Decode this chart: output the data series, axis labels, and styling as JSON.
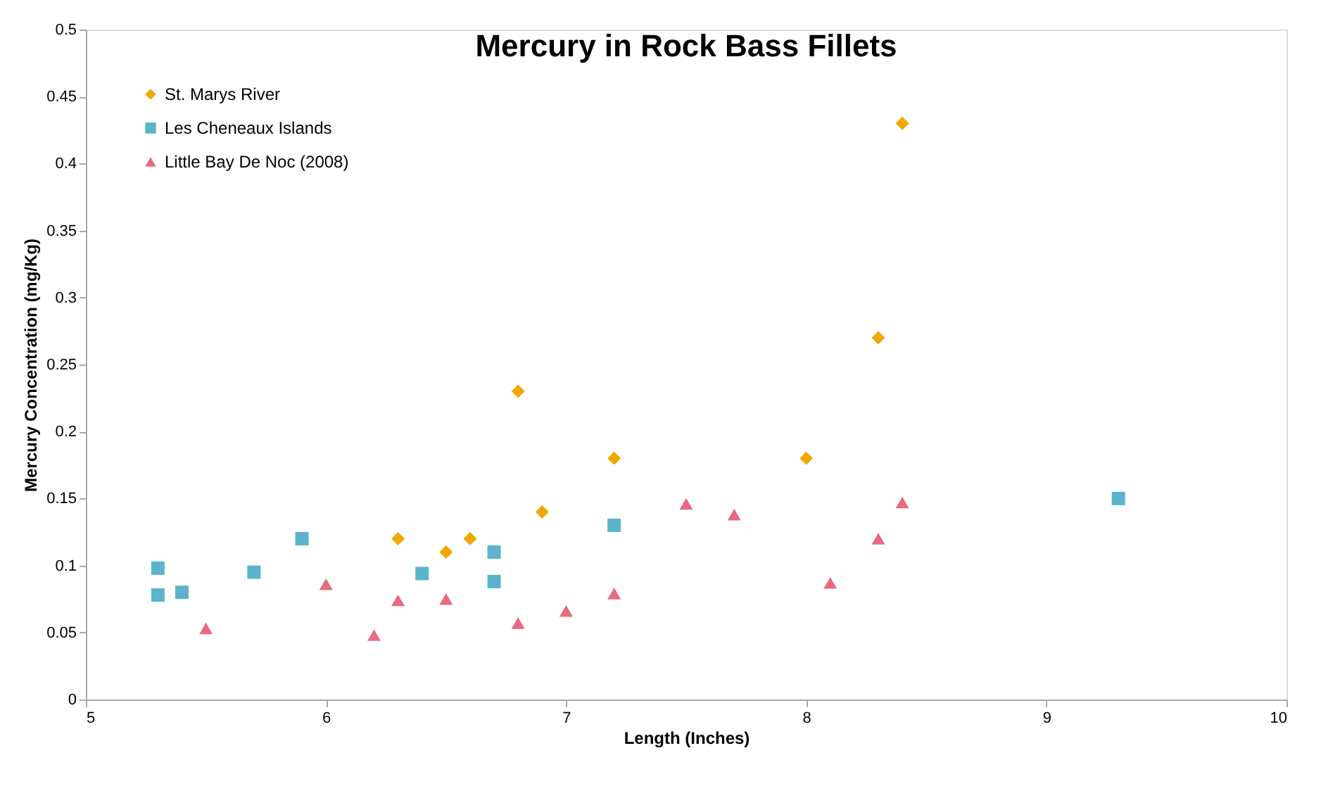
{
  "chart_data": {
    "type": "scatter",
    "title": "Mercury in Rock Bass Fillets",
    "xlabel": "Length (Inches)",
    "ylabel": "Mercury Concentration (mg/Kg)",
    "xlim": [
      5,
      10
    ],
    "xticks": [
      5,
      6,
      7,
      8,
      9,
      10
    ],
    "ylim": [
      0,
      0.5
    ],
    "yticks": [
      0,
      0.05,
      0.1,
      0.15,
      0.2,
      0.25,
      0.3,
      0.35,
      0.4,
      0.45,
      0.5
    ],
    "grid": false,
    "legend": "top left",
    "series": [
      {
        "name": "St. Marys River",
        "color": "#f0a800",
        "marker": "diamond",
        "x": [
          6.3,
          6.5,
          6.6,
          6.8,
          6.9,
          7.2,
          8.0,
          8.3,
          8.4
        ],
        "values": [
          0.12,
          0.11,
          0.12,
          0.23,
          0.14,
          0.18,
          0.18,
          0.27,
          0.43
        ]
      },
      {
        "name": "Les Cheneaux Islands",
        "color": "#5bb3cc",
        "marker": "square",
        "x": [
          5.3,
          5.3,
          5.4,
          5.7,
          5.9,
          6.4,
          6.7,
          6.7,
          7.2,
          9.3
        ],
        "values": [
          0.098,
          0.078,
          0.08,
          0.095,
          0.12,
          0.094,
          0.11,
          0.088,
          0.13,
          0.15
        ]
      },
      {
        "name": "Little Bay De Noc (2008)",
        "color": "#e86a7e",
        "marker": "triangle",
        "x": [
          5.5,
          6.0,
          6.2,
          6.3,
          6.5,
          6.8,
          7.0,
          7.2,
          7.5,
          7.7,
          8.1,
          8.3,
          8.4
        ],
        "values": [
          0.053,
          0.086,
          0.048,
          0.074,
          0.075,
          0.057,
          0.066,
          0.079,
          0.146,
          0.138,
          0.087,
          0.12,
          0.147
        ]
      }
    ]
  }
}
